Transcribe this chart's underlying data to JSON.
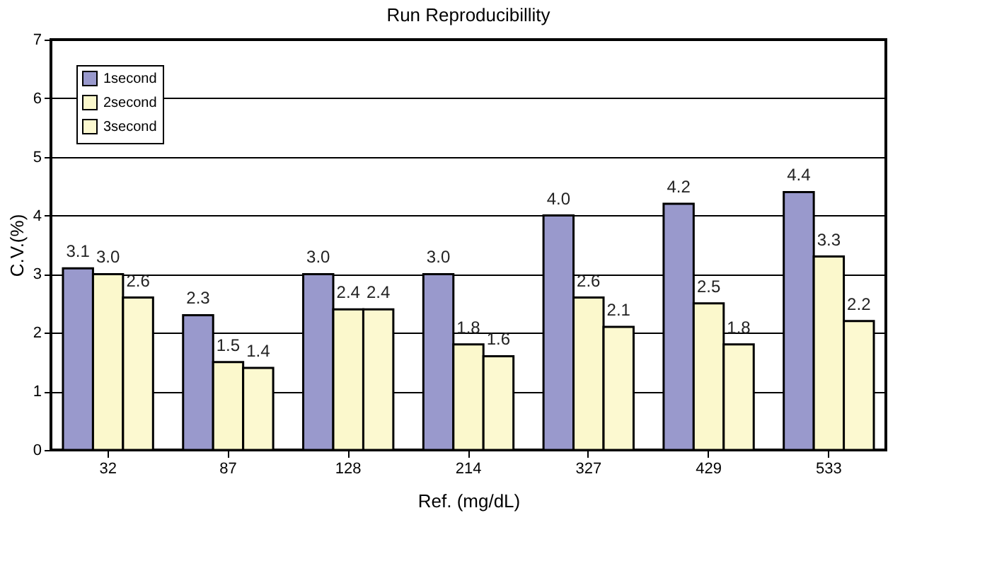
{
  "chart_data": {
    "type": "bar",
    "title": "Run Reproducibillity",
    "xlabel": "Ref.  (mg/dL)",
    "ylabel": "C.V.(%)",
    "categories": [
      "32",
      "87",
      "128",
      "214",
      "327",
      "429",
      "533"
    ],
    "series": [
      {
        "name": "1second",
        "color": "#9999cc",
        "values": [
          3.1,
          2.3,
          3.0,
          3.0,
          4.0,
          4.2,
          4.4
        ],
        "value_labels": [
          "3.1",
          "2.3",
          "3.0",
          "3.0",
          "4.0",
          "4.2",
          "4.4"
        ]
      },
      {
        "name": "2second",
        "color": "#fbf8cc",
        "values": [
          3.0,
          1.5,
          2.4,
          1.8,
          2.6,
          2.5,
          3.3
        ],
        "value_labels": [
          "3.0",
          "1.5",
          "2.4",
          "1.8",
          "2.6",
          "2.5",
          "3.3"
        ]
      },
      {
        "name": "3second",
        "color": "#fcf9d0",
        "values": [
          2.6,
          1.4,
          2.4,
          1.6,
          2.1,
          1.8,
          2.2
        ],
        "value_labels": [
          "2.6",
          "1.4",
          "2.4",
          "1.6",
          "2.1",
          "1.8",
          "2.2"
        ]
      }
    ],
    "ylim": [
      0,
      7
    ],
    "yticks": [
      0,
      1,
      2,
      3,
      4,
      5,
      6,
      7
    ],
    "grid": "y",
    "legend": "top left"
  }
}
